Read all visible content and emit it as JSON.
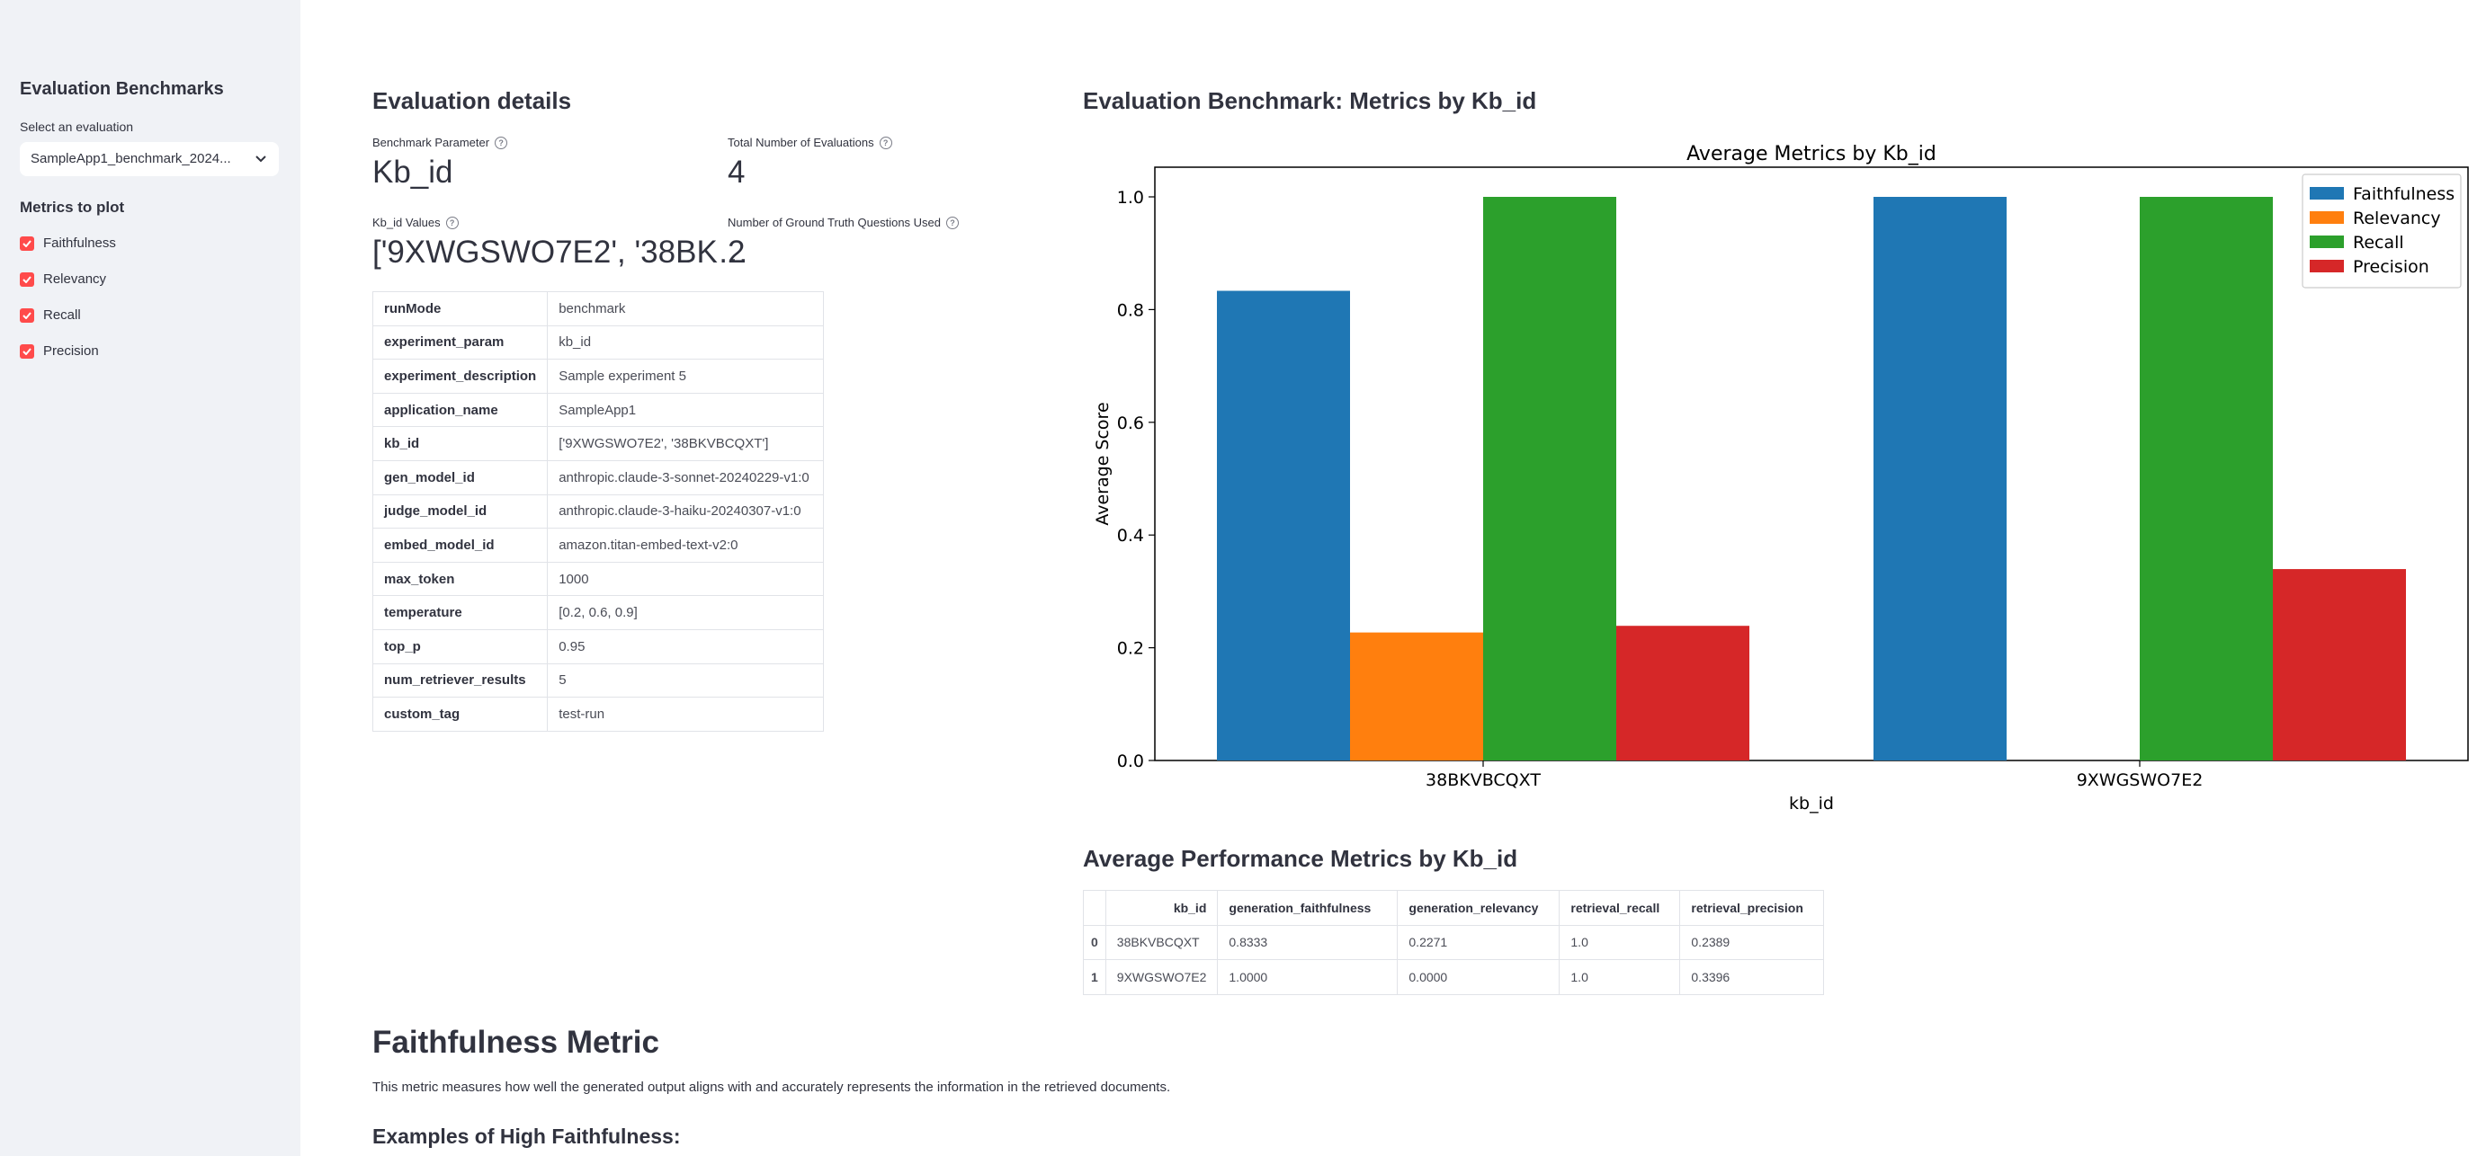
{
  "sidebar": {
    "title": "Evaluation Benchmarks",
    "select_label": "Select an evaluation",
    "select_value": "SampleApp1_benchmark_2024...",
    "metrics_title": "Metrics to plot",
    "metrics": [
      {
        "label": "Faithfulness",
        "checked": true
      },
      {
        "label": "Relevancy",
        "checked": true
      },
      {
        "label": "Recall",
        "checked": true
      },
      {
        "label": "Precision",
        "checked": true
      }
    ]
  },
  "details": {
    "title": "Evaluation details",
    "benchmark_param_label": "Benchmark Parameter",
    "benchmark_param_value": "Kb_id",
    "total_evals_label": "Total Number of Evaluations",
    "total_evals_value": "4",
    "kb_values_label": "Kb_id Values",
    "kb_values_value": "['9XWGSWO7E2', '38BK…",
    "gt_questions_label": "Number of Ground Truth Questions Used",
    "gt_questions_value": "2",
    "params": [
      {
        "key": "runMode",
        "value": "benchmark"
      },
      {
        "key": "experiment_param",
        "value": "kb_id"
      },
      {
        "key": "experiment_description",
        "value": "Sample experiment 5"
      },
      {
        "key": "application_name",
        "value": "SampleApp1"
      },
      {
        "key": "kb_id",
        "value": "['9XWGSWO7E2', '38BKVBCQXT']"
      },
      {
        "key": "gen_model_id",
        "value": "anthropic.claude-3-sonnet-20240229-v1:0"
      },
      {
        "key": "judge_model_id",
        "value": "anthropic.claude-3-haiku-20240307-v1:0"
      },
      {
        "key": "embed_model_id",
        "value": "amazon.titan-embed-text-v2:0"
      },
      {
        "key": "max_token",
        "value": "1000"
      },
      {
        "key": "temperature",
        "value": "[0.2, 0.6, 0.9]"
      },
      {
        "key": "top_p",
        "value": "0.95"
      },
      {
        "key": "num_retriever_results",
        "value": "5"
      },
      {
        "key": "custom_tag",
        "value": "test-run"
      }
    ]
  },
  "benchmark": {
    "title": "Evaluation Benchmark: Metrics by Kb_id"
  },
  "chart_data": {
    "type": "bar",
    "title": "Average Metrics by Kb_id",
    "xlabel": "kb_id",
    "ylabel": "Average Score",
    "categories": [
      "38BKVBCQXT",
      "9XWGSWO7E2"
    ],
    "series": [
      {
        "name": "Faithfulness",
        "values": [
          0.8333,
          1.0
        ],
        "color": "#1f77b4"
      },
      {
        "name": "Relevancy",
        "values": [
          0.2271,
          0.0
        ],
        "color": "#ff7f0e"
      },
      {
        "name": "Recall",
        "values": [
          1.0,
          1.0
        ],
        "color": "#2ca02c"
      },
      {
        "name": "Precision",
        "values": [
          0.2389,
          0.3396
        ],
        "color": "#d62728"
      }
    ],
    "ylim": [
      0,
      1.0
    ],
    "yticks": [
      "0.0",
      "0.2",
      "0.4",
      "0.6",
      "0.8",
      "1.0"
    ],
    "legend": "top-right",
    "grid": false
  },
  "perf": {
    "title": "Average Performance Metrics by Kb_id",
    "columns": [
      "",
      "kb_id",
      "generation_faithfulness",
      "generation_relevancy",
      "retrieval_recall",
      "retrieval_precision"
    ],
    "rows": [
      [
        "0",
        "38BKVBCQXT",
        "0.8333",
        "0.2271",
        "1.0",
        "0.2389"
      ],
      [
        "1",
        "9XWGSWO7E2",
        "1.0000",
        "0.0000",
        "1.0",
        "0.3396"
      ]
    ]
  },
  "faithfulness": {
    "title": "Faithfulness Metric",
    "description": "This metric measures how well the generated output aligns with and accurately represents the information in the retrieved documents.",
    "examples_title": "Examples of High Faithfulness:"
  },
  "colors": {
    "accent": "#ff4b4b",
    "sidebar_bg": "#f0f2f6"
  }
}
